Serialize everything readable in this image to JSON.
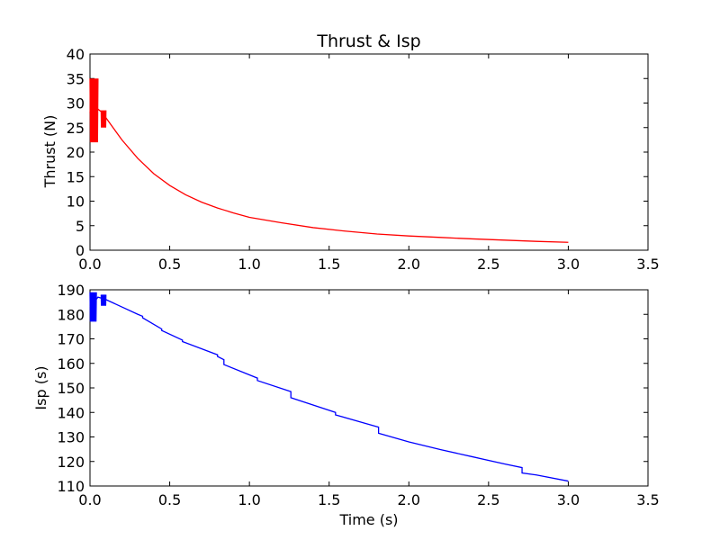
{
  "chart_data": [
    {
      "type": "line",
      "title": "Thrust & Isp",
      "xlabel": "",
      "ylabel": "Thrust (N)",
      "xlim": [
        0.0,
        3.5
      ],
      "ylim": [
        0,
        40
      ],
      "x_ticks": [
        "0.0",
        "0.5",
        "1.0",
        "1.5",
        "2.0",
        "2.5",
        "3.0",
        "3.5"
      ],
      "y_ticks": [
        "0",
        "5",
        "10",
        "15",
        "20",
        "25",
        "30",
        "35",
        "40"
      ],
      "grid": false,
      "series": [
        {
          "color": "#ff0000",
          "x": [
            0.0,
            0.01,
            0.04,
            0.08,
            0.1,
            0.2,
            0.3,
            0.4,
            0.5,
            0.6,
            0.7,
            0.8,
            0.84,
            0.9,
            1.0,
            1.2,
            1.4,
            1.6,
            1.8,
            2.0,
            2.2,
            2.4,
            2.6,
            2.8,
            3.0
          ],
          "y": [
            28.0,
            32.0,
            29.0,
            28.0,
            27.0,
            22.5,
            18.7,
            15.6,
            13.2,
            11.3,
            9.8,
            8.6,
            8.2,
            7.6,
            6.7,
            5.6,
            4.6,
            3.9,
            3.3,
            2.9,
            2.6,
            2.3,
            2.05,
            1.8,
            1.6
          ],
          "oscillation_bands": [
            {
              "x_start": 0.0,
              "x_end": 0.05,
              "y_min": 22,
              "y_max": 35
            },
            {
              "x_start": 0.07,
              "x_end": 0.1,
              "y_min": 25,
              "y_max": 28.5
            }
          ]
        }
      ]
    },
    {
      "type": "line",
      "title": "",
      "xlabel": "Time (s)",
      "ylabel": "Isp (s)",
      "xlim": [
        0.0,
        3.5
      ],
      "ylim": [
        110,
        190
      ],
      "x_ticks": [
        "0.0",
        "0.5",
        "1.0",
        "1.5",
        "2.0",
        "2.5",
        "3.0",
        "3.5"
      ],
      "y_ticks": [
        "110",
        "120",
        "130",
        "140",
        "150",
        "160",
        "170",
        "180",
        "190"
      ],
      "grid": false,
      "series": [
        {
          "color": "#0000ff",
          "x": [
            0.0,
            0.05,
            0.1,
            0.2,
            0.3,
            0.33,
            0.33,
            0.45,
            0.45,
            0.58,
            0.58,
            0.8,
            0.8,
            0.84,
            0.84,
            1.05,
            1.05,
            1.26,
            1.26,
            1.54,
            1.54,
            1.81,
            1.81,
            2.0,
            2.2,
            2.4,
            2.6,
            2.71,
            2.71,
            2.8,
            3.0
          ],
          "y": [
            183.0,
            187.0,
            186.0,
            183.0,
            180.0,
            179.2,
            178.6,
            174.0,
            173.4,
            169.5,
            168.9,
            163.5,
            162.8,
            161.5,
            159.5,
            154.0,
            153.0,
            148.5,
            146.0,
            140.0,
            139.0,
            134.0,
            131.5,
            128.0,
            124.8,
            121.9,
            119.0,
            117.5,
            115.3,
            114.5,
            112.0
          ],
          "oscillation_bands": [
            {
              "x_start": 0.0,
              "x_end": 0.04,
              "y_min": 177,
              "y_max": 189
            },
            {
              "x_start": 0.07,
              "x_end": 0.1,
              "y_min": 183.5,
              "y_max": 188
            }
          ]
        }
      ]
    }
  ]
}
